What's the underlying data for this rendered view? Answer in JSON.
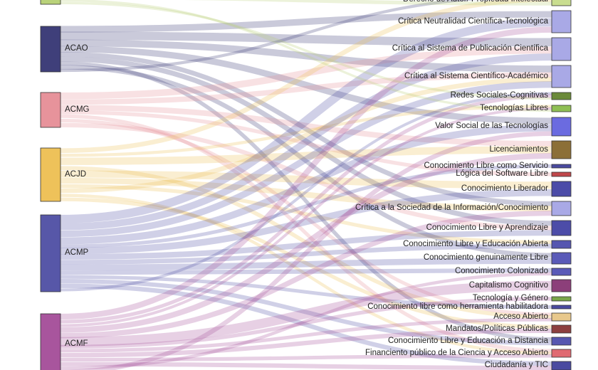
{
  "sources": [
    {
      "id": "top",
      "label": "",
      "color": "#b9d27a"
    },
    {
      "id": "ACAO",
      "label": "ACAO",
      "color": "#3f3f7a"
    },
    {
      "id": "ACMG",
      "label": "ACMG",
      "color": "#e7939b"
    },
    {
      "id": "ACJD",
      "label": "ACJD",
      "color": "#eec25a"
    },
    {
      "id": "ACMP",
      "label": "ACMP",
      "color": "#5757a8"
    },
    {
      "id": "ACMF",
      "label": "ACMF",
      "color": "#a8559d"
    }
  ],
  "targets": [
    {
      "label": "Derecho de Autor/ Propiedad Intelectual",
      "color": "#c9dd8f"
    },
    {
      "label": "Crítica Neutralidad Científica-Tecnológica",
      "color": "#a9a9e6"
    },
    {
      "label": "Crítica al Sistema de Publicación Científica",
      "color": "#a9a9e6"
    },
    {
      "label": "Crítica al Sistema Científico-Académico",
      "color": "#a9a9e6"
    },
    {
      "label": "Redes Sociales-Cognitivas",
      "color": "#6b8a3a"
    },
    {
      "label": "Tecnologías Libres",
      "color": "#8fbf54"
    },
    {
      "label": "Valor Social de las Tecnologías",
      "color": "#6b6be0"
    },
    {
      "label": "Licenciamientos",
      "color": "#8c6f37"
    },
    {
      "label": "Conocimiento Libre como Servicio",
      "color": "#4a4aa0"
    },
    {
      "label": "Lógica del Software Libre",
      "color": "#c0474b"
    },
    {
      "label": "Conocimiento Liberador",
      "color": "#4c4ca8"
    },
    {
      "label": "Crítica a la Sociedad de la Información/Conocimiento",
      "color": "#a9a9e6"
    },
    {
      "label": "Conocimiento Libre y Aprendizaje",
      "color": "#4c4ca8"
    },
    {
      "label": "Conocimiento Libre y Educación Abierta",
      "color": "#5656b0"
    },
    {
      "label": "Conocimiento genuinamente Libre",
      "color": "#5a5ab8"
    },
    {
      "label": "Conocimiento Colonizado",
      "color": "#5a5ab8"
    },
    {
      "label": "Capitalismo Cognitivo",
      "color": "#8c3f7a"
    },
    {
      "label": "Tecnología y Género",
      "color": "#7aa64a"
    },
    {
      "label": "Conocimiento libre como herramienta habilitadora",
      "color": "#4a4aa0"
    },
    {
      "label": "Acceso Abierto",
      "color": "#e8c88c"
    },
    {
      "label": "Mandatos/Políticas Públicas",
      "color": "#8c3f3f"
    },
    {
      "label": "Conocimiento Libre y Educación a Distancia",
      "color": "#5656b0"
    },
    {
      "label": "Financiento público de la Ciencia y Acceso Abierto",
      "color": "#e06a72"
    },
    {
      "label": "Ciudadanía y TIC",
      "color": "#4a4aa0"
    }
  ]
}
